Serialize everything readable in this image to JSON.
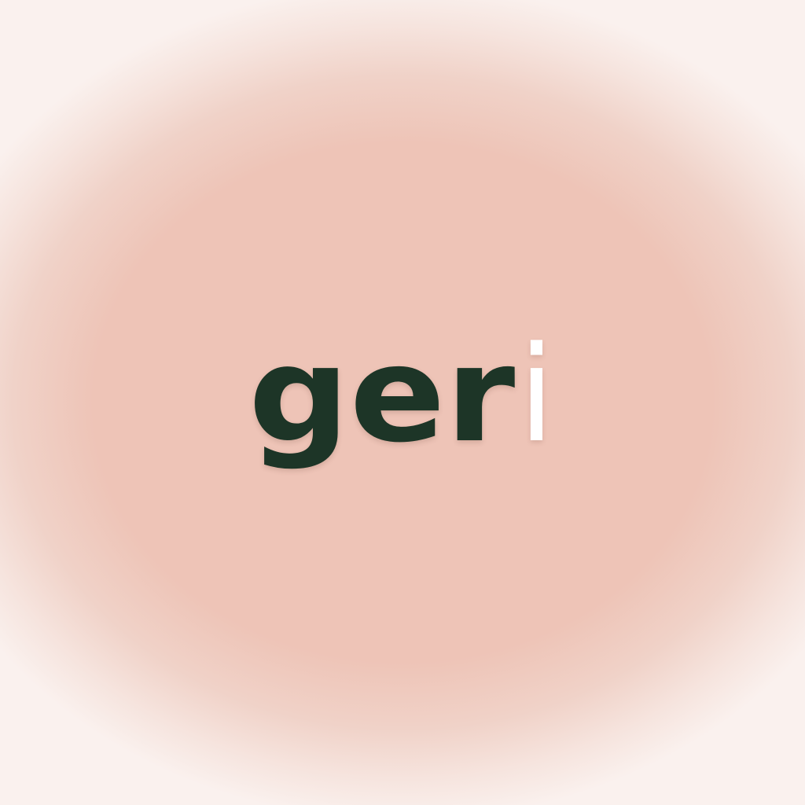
{
  "brand": {
    "logo_main": "ger",
    "logo_accent": "i"
  },
  "colors": {
    "logo_primary": "#1d3527",
    "logo_accent": "#ffffff",
    "background_center": "#eec4b7",
    "background_edge": "#faf1ee"
  }
}
